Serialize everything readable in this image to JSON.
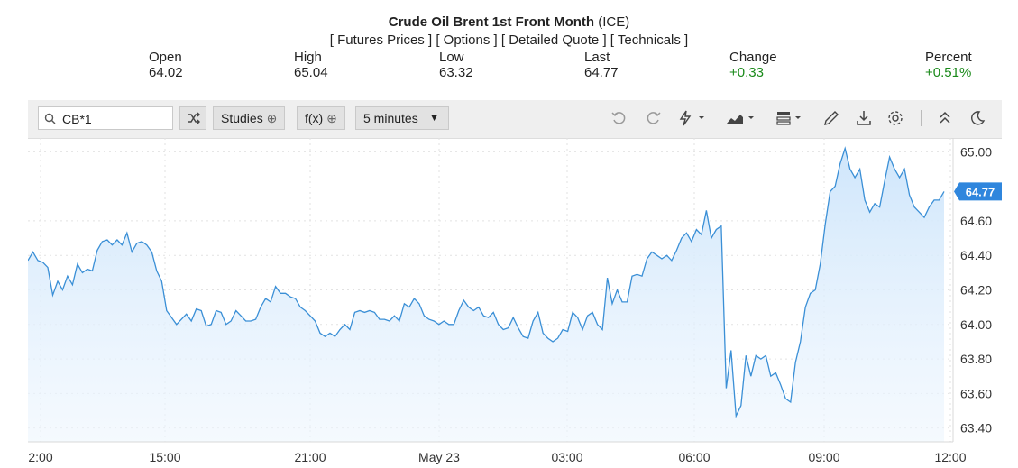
{
  "header": {
    "title": "Crude Oil Brent 1st Front Month",
    "exchange": "(ICE)",
    "links": [
      "[ Futures Prices ]",
      "[ Options ]",
      "[ Detailed Quote ]",
      "[ Technicals ]"
    ]
  },
  "stats": {
    "open": {
      "label": "Open",
      "value": "64.02"
    },
    "high": {
      "label": "High",
      "value": "65.04"
    },
    "low": {
      "label": "Low",
      "value": "63.32"
    },
    "last": {
      "label": "Last",
      "value": "64.77"
    },
    "change": {
      "label": "Change",
      "value": "+0.33"
    },
    "percent": {
      "label": "Percent",
      "value": "+0.51%"
    }
  },
  "toolbar": {
    "search_value": "CB*1",
    "studies_label": "Studies",
    "fx_label": "f(x)",
    "interval_label": "5 minutes",
    "icons": [
      "shuffle-icon",
      "undo-icon",
      "redo-icon",
      "lightning-icon",
      "area-chart-icon",
      "layout-icon",
      "pencil-icon",
      "download-icon",
      "gear-icon",
      "collapse-icon",
      "moon-icon"
    ]
  },
  "colors": {
    "line": "#3a8fd6",
    "fill_top": "#cfe6fb",
    "last_badge": "#2f86dd",
    "green": "#1a8a1a"
  },
  "chart_data": {
    "type": "area",
    "x_ticks": [
      "2:00",
      "15:00",
      "21:00",
      "May 23",
      "03:00",
      "06:00",
      "09:00",
      "12:00"
    ],
    "y_ticks": [
      "65.00",
      "64.60",
      "64.40",
      "64.20",
      "64.00",
      "63.80",
      "63.60",
      "63.40"
    ],
    "ylim": [
      63.32,
      65.08
    ],
    "last_value_label": "64.77",
    "y": [
      64.37,
      64.42,
      64.37,
      64.36,
      64.33,
      64.17,
      64.25,
      64.2,
      64.28,
      64.23,
      64.35,
      64.3,
      64.32,
      64.31,
      64.43,
      64.48,
      64.49,
      64.46,
      64.49,
      64.46,
      64.53,
      64.42,
      64.47,
      64.48,
      64.46,
      64.42,
      64.31,
      64.25,
      64.08,
      64.04,
      64.0,
      64.03,
      64.06,
      64.02,
      64.09,
      64.08,
      63.99,
      64.0,
      64.08,
      64.07,
      64.0,
      64.02,
      64.08,
      64.05,
      64.02,
      64.02,
      64.03,
      64.1,
      64.15,
      64.13,
      64.22,
      64.18,
      64.18,
      64.16,
      64.15,
      64.1,
      64.08,
      64.05,
      64.02,
      63.95,
      63.93,
      63.95,
      63.93,
      63.97,
      64.0,
      63.97,
      64.07,
      64.08,
      64.07,
      64.08,
      64.07,
      64.03,
      64.03,
      64.02,
      64.05,
      64.02,
      64.12,
      64.1,
      64.15,
      64.12,
      64.05,
      64.03,
      64.02,
      64.0,
      64.02,
      64.0,
      64.0,
      64.08,
      64.14,
      64.1,
      64.08,
      64.1,
      64.05,
      64.04,
      64.07,
      64.0,
      63.97,
      63.98,
      64.04,
      63.98,
      63.93,
      63.92,
      64.02,
      64.07,
      63.95,
      63.92,
      63.9,
      63.92,
      63.97,
      63.96,
      64.07,
      64.04,
      63.97,
      64.05,
      64.07,
      64.0,
      63.97,
      64.27,
      64.12,
      64.2,
      64.13,
      64.13,
      64.28,
      64.29,
      64.28,
      64.38,
      64.42,
      64.4,
      64.38,
      64.4,
      64.37,
      64.43,
      64.5,
      64.53,
      64.48,
      64.55,
      64.52,
      64.66,
      64.5,
      64.55,
      64.57,
      63.63,
      63.85,
      63.47,
      63.53,
      63.82,
      63.7,
      63.82,
      63.8,
      63.82,
      63.7,
      63.72,
      63.65,
      63.57,
      63.55,
      63.78,
      63.9,
      64.1,
      64.18,
      64.2,
      64.35,
      64.58,
      64.77,
      64.8,
      64.93,
      65.02,
      64.9,
      64.85,
      64.9,
      64.72,
      64.65,
      64.7,
      64.68,
      64.83,
      64.97,
      64.9,
      64.85,
      64.9,
      64.75,
      64.68,
      64.65,
      64.62,
      64.68,
      64.72,
      64.72,
      64.77
    ]
  }
}
